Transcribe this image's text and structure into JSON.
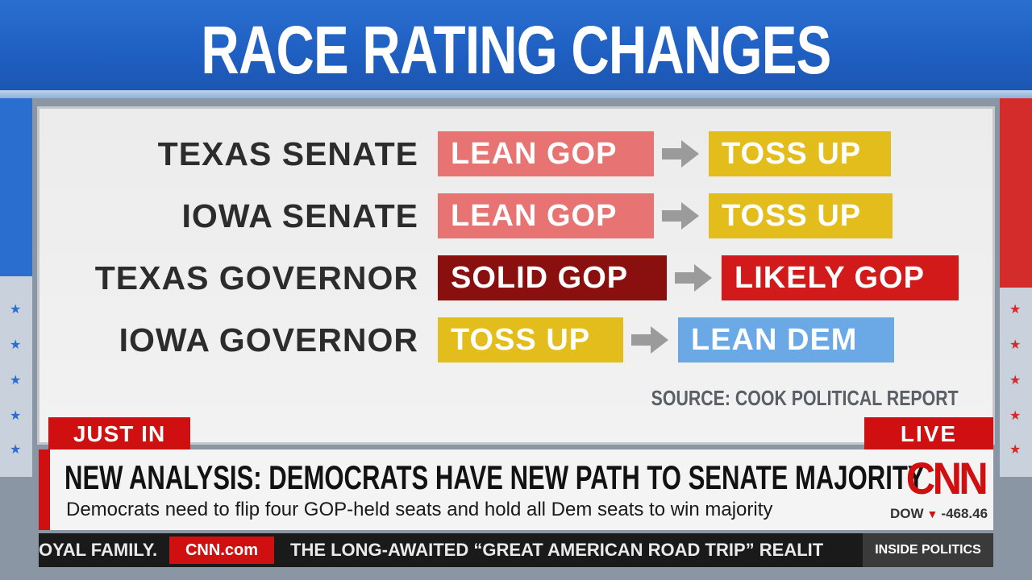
{
  "header": {
    "title": "RACE RATING CHANGES"
  },
  "colors": {
    "lean_gop": "#e87373",
    "solid_gop": "#8a1010",
    "likely_gop": "#d21a1a",
    "toss_up": "#e3bd1c",
    "lean_dem": "#6aa8e6",
    "arrow": "#9b9b9b",
    "cnn_red": "#d01010"
  },
  "ratings": [
    {
      "race": "TEXAS SENATE",
      "from": "LEAN GOP",
      "to": "TOSS UP",
      "from_color": "lean_gop",
      "to_color": "toss_up"
    },
    {
      "race": "IOWA SENATE",
      "from": "LEAN GOP",
      "to": "TOSS UP",
      "from_color": "lean_gop",
      "to_color": "toss_up"
    },
    {
      "race": "TEXAS GOVERNOR",
      "from": "SOLID GOP",
      "to": "LIKELY GOP",
      "from_color": "solid_gop",
      "to_color": "likely_gop"
    },
    {
      "race": "IOWA GOVERNOR",
      "from": "TOSS UP",
      "to": "LEAN DEM",
      "from_color": "toss_up",
      "to_color": "lean_dem"
    }
  ],
  "source": "SOURCE: COOK POLITICAL REPORT",
  "lower_third": {
    "tag": "JUST IN",
    "live": "LIVE",
    "headline": "NEW ANALYSIS: DEMOCRATS HAVE NEW PATH TO SENATE MAJORITY",
    "subline": "Democrats need to flip four GOP-held seats and hold all Dem seats to win majority",
    "logo": "CNN",
    "market": {
      "index": "DOW",
      "change": "-468.46",
      "direction": "down"
    }
  },
  "ticker": {
    "left_text": "OYAL FAMILY.",
    "brand": "CNN.com",
    "text": "THE LONG-AWAITED “GREAT AMERICAN ROAD TRIP” REALIT",
    "show": "INSIDE POLITICS"
  }
}
